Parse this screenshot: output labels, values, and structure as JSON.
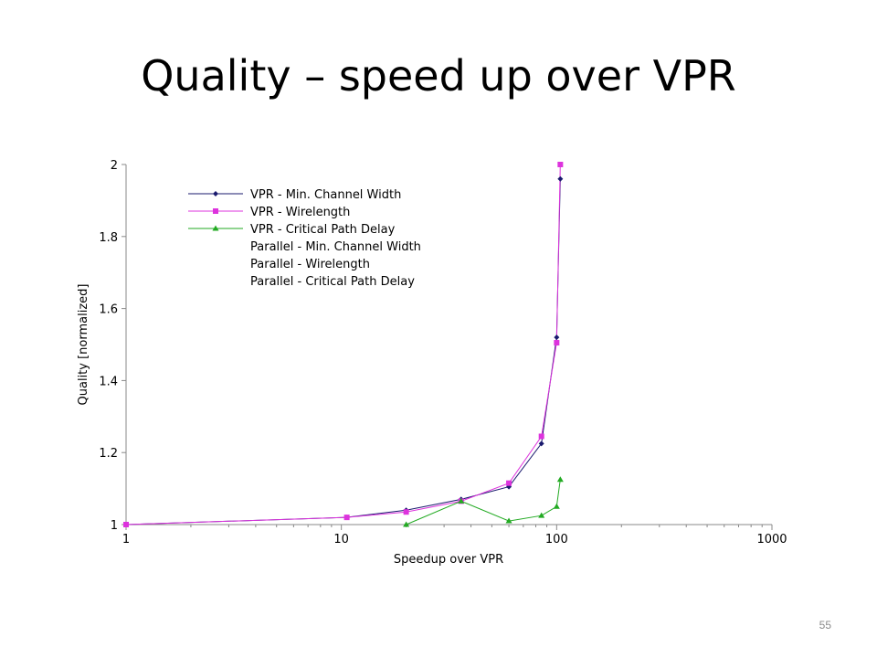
{
  "slide": {
    "title": "Quality – speed up over VPR",
    "page_number": "55"
  },
  "chart_data": {
    "type": "line",
    "xscale": "log",
    "xlabel": "Speedup over VPR",
    "ylabel": "Quality [normalized]",
    "xlim": [
      1,
      1000
    ],
    "ylim": [
      1,
      2
    ],
    "xticks": [
      1,
      10,
      100,
      1000
    ],
    "xtick_labels": [
      "1",
      "10",
      "100",
      "1000"
    ],
    "yticks": [
      1,
      1.2,
      1.4,
      1.6,
      1.8,
      2
    ],
    "ytick_labels": [
      "1",
      "1.2",
      "1.4",
      "1.6",
      "1.8",
      "2"
    ],
    "grid": false,
    "legend_position": "top-left",
    "series": [
      {
        "name": "VPR - Min. Channel Width",
        "color": "#1a1a6e",
        "marker": "diamond",
        "points": [
          [
            1,
            1.0
          ],
          [
            10.6,
            1.02
          ],
          [
            20,
            1.04
          ],
          [
            36,
            1.07
          ],
          [
            60,
            1.105
          ],
          [
            85,
            1.225
          ],
          [
            100,
            1.52
          ],
          [
            104,
            1.96
          ]
        ]
      },
      {
        "name": "VPR - Wirelength",
        "color": "#dd33dd",
        "marker": "square",
        "points": [
          [
            1,
            1.0
          ],
          [
            10.6,
            1.02
          ],
          [
            20,
            1.035
          ],
          [
            36,
            1.065
          ],
          [
            60,
            1.115
          ],
          [
            85,
            1.245
          ],
          [
            100,
            1.505
          ],
          [
            104,
            2.0
          ]
        ]
      },
      {
        "name": "VPR - Critical Path Delay",
        "color": "#22aa22",
        "marker": "triangle",
        "points": [
          [
            20,
            1.0
          ],
          [
            36,
            1.065
          ],
          [
            60,
            1.01
          ],
          [
            85,
            1.025
          ],
          [
            100,
            1.05
          ],
          [
            104,
            1.125
          ]
        ]
      },
      {
        "name": "Parallel - Min. Channel Width",
        "color": "#ffffff",
        "marker": "none",
        "points": []
      },
      {
        "name": "Parallel - Wirelength",
        "color": "#ffffff",
        "marker": "none",
        "points": []
      },
      {
        "name": "Parallel - Critical Path Delay",
        "color": "#ffffff",
        "marker": "none",
        "points": []
      }
    ]
  }
}
